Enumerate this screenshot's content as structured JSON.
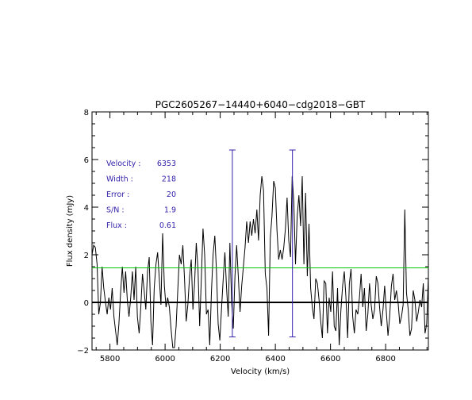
{
  "chart_data": {
    "type": "line",
    "title": "PGC2605267−14440+6040−cdg2018−GBT",
    "xlabel": "Velocity (km/s)",
    "ylabel": "Flux density (mJy)",
    "xlim": [
      5735,
      6955
    ],
    "ylim": [
      -2.0,
      8.0
    ],
    "x_ticks": [
      5800,
      6000,
      6200,
      6400,
      6600,
      6800
    ],
    "x_tick_labels": [
      "5800",
      "6000",
      "6200",
      "6400",
      "6600",
      "6800"
    ],
    "y_ticks": [
      -2,
      0,
      2,
      4,
      6,
      8
    ],
    "y_tick_labels": [
      "−2",
      "0",
      "2",
      "4",
      "6",
      "8"
    ],
    "grid": false,
    "series": [
      {
        "color": "#000000",
        "x_start": 5735,
        "x_step": 6.1,
        "values": [
          2.0,
          2.4,
          2.3,
          1.6,
          -0.5,
          0.0,
          1.5,
          0.6,
          0.0,
          -0.5,
          0.2,
          -0.3,
          0.6,
          -0.6,
          -1.2,
          -1.8,
          -0.9,
          0.4,
          1.5,
          0.4,
          1.3,
          0.1,
          -0.6,
          0.2,
          1.3,
          0.1,
          1.5,
          -0.6,
          -1.3,
          -0.2,
          1.2,
          0.5,
          -0.3,
          1.3,
          1.9,
          -0.8,
          -1.8,
          0.6,
          1.6,
          2.1,
          1.0,
          -0.1,
          2.9,
          0.7,
          -0.2,
          0.2,
          -0.2,
          -1.1,
          -1.9,
          -1.9,
          -1.0,
          0.5,
          2.0,
          1.6,
          2.4,
          1.0,
          -0.8,
          -0.1,
          1.1,
          1.8,
          -0.3,
          0.8,
          2.5,
          1.4,
          -1.0,
          1.0,
          3.1,
          2.0,
          -0.5,
          -0.3,
          -1.8,
          0.4,
          2.0,
          2.8,
          1.3,
          -0.9,
          -1.6,
          -0.3,
          1.0,
          2.1,
          0.6,
          -0.6,
          2.5,
          0.0,
          -1.1,
          1.1,
          2.4,
          1.1,
          -0.4,
          0.7,
          1.5,
          2.3,
          3.4,
          2.5,
          3.4,
          2.8,
          3.5,
          2.9,
          3.9,
          2.6,
          4.5,
          5.3,
          4.7,
          1.2,
          0.6,
          -1.4,
          2.7,
          3.6,
          5.1,
          4.8,
          3.0,
          1.8,
          2.2,
          1.8,
          2.3,
          3.1,
          4.4,
          2.6,
          1.9,
          5.3,
          4.2,
          1.6,
          3.6,
          4.5,
          3.2,
          5.3,
          1.6,
          4.6,
          1.1,
          3.3,
          0.6,
          -0.2,
          -0.7,
          1.0,
          0.8,
          0.1,
          -0.8,
          -1.5,
          0.9,
          0.8,
          -1.3,
          0.2,
          -0.4,
          1.3,
          -1.0,
          -1.2,
          0.6,
          -1.8,
          -0.3,
          0.7,
          1.3,
          0.2,
          -1.5,
          0.8,
          1.4,
          -0.6,
          -1.3,
          -0.3,
          -0.5,
          0.2,
          1.2,
          -0.2,
          0.6,
          -1.2,
          -0.5,
          0.8,
          -0.1,
          -0.7,
          -0.3,
          1.1,
          0.8,
          -0.2,
          -1.0,
          -0.3,
          0.7,
          -0.4,
          -1.4,
          -0.6,
          0.7,
          1.2,
          0.1,
          0.5,
          0.0,
          -0.9,
          -0.6,
          -0.1,
          3.9,
          0.4,
          -0.3,
          -1.4,
          -1.1,
          0.5,
          0.1,
          -0.8,
          -0.4,
          0.1,
          -0.2,
          0.8,
          -1.3,
          -0.9,
          1.1,
          0.1,
          -0.4,
          0.8,
          1.9,
          0.7,
          2.8,
          0.5,
          1.3,
          1.5,
          0.7,
          -0.9
        ]
      }
    ],
    "threshold_line": {
      "y": 1.45,
      "color": "#00cc00"
    },
    "zero_line": {
      "y": 0,
      "color": "#000000"
    },
    "markers": {
      "color": "#3322aa",
      "left_x": 6244,
      "right_x": 6462,
      "y_top": 6.4,
      "y_bottom": -1.45
    },
    "annotation": {
      "color": "#3322aa",
      "rows": [
        {
          "label": "Velocity :",
          "value": "6353"
        },
        {
          "label": "Width :",
          "value": "218"
        },
        {
          "label": "Error :",
          "value": "20"
        },
        {
          "label": "S/N :",
          "value": "1.9"
        },
        {
          "label": "Flux :",
          "value": "0.61"
        }
      ]
    }
  }
}
